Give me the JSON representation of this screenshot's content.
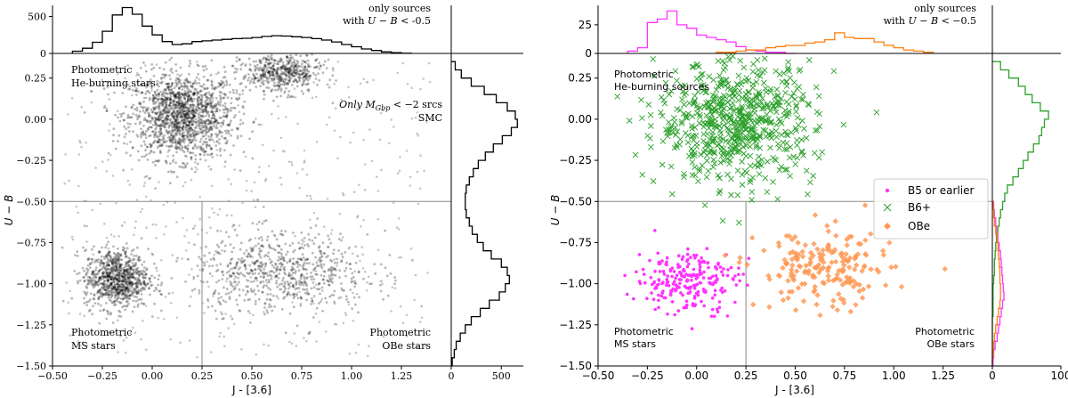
{
  "chart_data": [
    {
      "type": "scatter",
      "title": "",
      "xlabel": "J - [3.6]",
      "ylabel": "U − B",
      "xlim": [
        -0.5,
        1.5
      ],
      "ylim": [
        -1.5,
        0.4
      ],
      "xticks": [
        "−0.50",
        "−0.25",
        "0.00",
        "0.25",
        "0.50",
        "0.75",
        "1.00",
        "1.25"
      ],
      "xtick_values": [
        -0.5,
        -0.25,
        0.0,
        0.25,
        0.5,
        0.75,
        1.0,
        1.25
      ],
      "yticks": [
        "0.25",
        "0.00",
        "−0.25",
        "−0.50",
        "−0.75",
        "−1.00",
        "−1.25",
        "−1.50"
      ],
      "ytick_values": [
        0.25,
        0.0,
        -0.25,
        -0.5,
        -0.75,
        -1.0,
        -1.25,
        -1.5
      ],
      "reference_lines": {
        "vertical_x": 0.25,
        "horizontal_y": -0.5
      },
      "clusters": [
        {
          "name": "Photometric He-burning stars",
          "center": [
            0.15,
            0.02
          ],
          "spread": [
            0.13,
            0.13
          ],
          "count": 1500
        },
        {
          "name": "Photometric MS stars",
          "center": [
            -0.18,
            -0.97
          ],
          "spread": [
            0.08,
            0.09
          ],
          "count": 900
        },
        {
          "name": "Photometric OBe stars",
          "center": [
            0.65,
            -0.93
          ],
          "spread": [
            0.22,
            0.12
          ],
          "count": 700
        },
        {
          "name": "upper branch",
          "center": [
            0.65,
            0.28
          ],
          "spread": [
            0.1,
            0.06
          ],
          "count": 500
        }
      ],
      "annotations": {
        "top_left": [
          "Photometric",
          "He-burning stars"
        ],
        "bottom_left": [
          "Photometric",
          "MS stars"
        ],
        "bottom_right": [
          "Photometric",
          "OBe stars"
        ],
        "right_note_main": "Only M",
        "right_note_sub": "Gbp",
        "right_note_tail": " < −2 srcs",
        "right_note_line2": "SMC",
        "top_hist_note": [
          "only sources",
          "with ",
          "U − B",
          " < -0.5"
        ]
      },
      "top_hist": {
        "yticks": [
          "0",
          "500"
        ],
        "ytick_values": [
          0,
          500
        ],
        "ylim": [
          0,
          650
        ],
        "bin_edges": [
          -0.4,
          -0.35,
          -0.3,
          -0.25,
          -0.2,
          -0.15,
          -0.1,
          -0.05,
          0.0,
          0.05,
          0.1,
          0.15,
          0.2,
          0.25,
          0.3,
          0.35,
          0.4,
          0.45,
          0.5,
          0.55,
          0.6,
          0.65,
          0.7,
          0.75,
          0.8,
          0.85,
          0.9,
          0.95,
          1.0,
          1.05,
          1.1,
          1.15,
          1.2,
          1.25,
          1.3
        ],
        "counts": [
          30,
          70,
          150,
          300,
          520,
          620,
          530,
          370,
          250,
          160,
          120,
          130,
          160,
          170,
          180,
          190,
          200,
          205,
          215,
          230,
          240,
          235,
          225,
          215,
          200,
          180,
          155,
          120,
          90,
          60,
          40,
          20,
          10,
          3
        ]
      },
      "right_hist": {
        "xticks": [
          "0",
          "500"
        ],
        "xtick_values": [
          0,
          500
        ],
        "xlim": [
          0,
          720
        ],
        "bin_edges": [
          -1.5,
          -1.45,
          -1.4,
          -1.35,
          -1.3,
          -1.25,
          -1.2,
          -1.15,
          -1.1,
          -1.05,
          -1.0,
          -0.95,
          -0.9,
          -0.85,
          -0.8,
          -0.75,
          -0.7,
          -0.65,
          -0.6,
          -0.55,
          -0.5,
          -0.45,
          -0.4,
          -0.35,
          -0.3,
          -0.25,
          -0.2,
          -0.15,
          -0.1,
          -0.05,
          0.0,
          0.05,
          0.1,
          0.15,
          0.2,
          0.25,
          0.3,
          0.35
        ],
        "counts": [
          10,
          30,
          50,
          90,
          140,
          200,
          290,
          380,
          480,
          540,
          580,
          560,
          500,
          400,
          320,
          260,
          210,
          180,
          150,
          140,
          140,
          150,
          180,
          220,
          270,
          340,
          420,
          510,
          600,
          660,
          640,
          560,
          450,
          330,
          200,
          100,
          40
        ]
      }
    },
    {
      "type": "scatter",
      "title": "",
      "xlabel": "J - [3.6]",
      "ylabel": "U − B",
      "xlim": [
        -0.5,
        1.5
      ],
      "ylim": [
        -1.5,
        0.4
      ],
      "xticks": [
        "−0.50",
        "−0.25",
        "0.00",
        "0.25",
        "0.50",
        "0.75",
        "1.00",
        "1.25"
      ],
      "xtick_values": [
        -0.5,
        -0.25,
        0.0,
        0.25,
        0.5,
        0.75,
        1.0,
        1.25
      ],
      "yticks": [
        "0.25",
        "0.00",
        "−0.25",
        "−0.50",
        "−0.75",
        "−1.00",
        "−1.25",
        "−1.50"
      ],
      "ytick_values": [
        0.25,
        0.0,
        -0.25,
        -0.5,
        -0.75,
        -1.0,
        -1.25,
        -1.5
      ],
      "reference_lines": {
        "vertical_x": 0.25,
        "horizontal_y": -0.5
      },
      "series": [
        {
          "name": "B5 or earlier",
          "color": "#ff33ff",
          "marker": "dot",
          "center": [
            -0.05,
            -0.98
          ],
          "spread": [
            0.13,
            0.1
          ],
          "count": 230
        },
        {
          "name": "B6+",
          "color": "#2ca02c",
          "marker": "x",
          "center": [
            0.2,
            -0.02
          ],
          "spread": [
            0.2,
            0.18
          ],
          "count": 650
        },
        {
          "name": "OBe",
          "color": "#ff9955",
          "marker": "diamond",
          "center": [
            0.65,
            -0.92
          ],
          "spread": [
            0.17,
            0.12
          ],
          "count": 190
        }
      ],
      "legend": {
        "placement": "right",
        "entries": [
          "B5 or earlier",
          "B6+",
          "OBe"
        ]
      },
      "annotations": {
        "top_left": [
          "Photometric",
          "He-burning sources"
        ],
        "bottom_left": [
          "Photometric",
          "MS stars"
        ],
        "bottom_right": [
          "Photometric",
          "OBe stars"
        ],
        "top_hist_note": [
          "only sources",
          "with ",
          "U − B",
          " < −0.5"
        ]
      },
      "top_hist": {
        "yticks": [
          "0",
          "25"
        ],
        "ytick_values": [
          0,
          25
        ],
        "ylim": [
          0,
          42
        ],
        "series": [
          {
            "name": "B5 or earlier",
            "color": "#ff33ff",
            "bin_edges": [
              -0.35,
              -0.3,
              -0.25,
              -0.2,
              -0.15,
              -0.1,
              -0.05,
              0.0,
              0.05,
              0.1,
              0.15,
              0.2,
              0.25,
              0.3,
              0.35,
              0.4,
              0.45,
              0.5
            ],
            "counts": [
              2,
              5,
              27,
              30,
              37,
              25,
              22,
              16,
              14,
              12,
              10,
              6,
              3,
              2,
              1,
              1,
              0
            ]
          },
          {
            "name": "OBe",
            "color": "#ff7f0e",
            "bin_edges": [
              0.1,
              0.15,
              0.2,
              0.25,
              0.3,
              0.35,
              0.4,
              0.45,
              0.5,
              0.55,
              0.6,
              0.65,
              0.7,
              0.75,
              0.8,
              0.85,
              0.9,
              0.95,
              1.0,
              1.05,
              1.1,
              1.15,
              1.2
            ],
            "counts": [
              1,
              1,
              2,
              3,
              3,
              5,
              6,
              7,
              7,
              9,
              10,
              12,
              18,
              14,
              13,
              13,
              10,
              7,
              5,
              3,
              2,
              1
            ]
          }
        ]
      },
      "right_hist": {
        "xticks": [
          "0",
          "100"
        ],
        "xtick_values": [
          0,
          100
        ],
        "xlim": [
          0,
          100
        ],
        "series": [
          {
            "name": "B6+",
            "color": "#2ca02c",
            "bin_edges": [
              -1.5,
              -1.45,
              -1.4,
              -1.35,
              -1.3,
              -1.25,
              -1.2,
              -1.15,
              -1.1,
              -1.05,
              -1.0,
              -0.95,
              -0.9,
              -0.85,
              -0.8,
              -0.75,
              -0.7,
              -0.65,
              -0.6,
              -0.55,
              -0.5,
              -0.45,
              -0.4,
              -0.35,
              -0.3,
              -0.25,
              -0.2,
              -0.15,
              -0.1,
              -0.05,
              0.0,
              0.05,
              0.1,
              0.15,
              0.2,
              0.25,
              0.3,
              0.35
            ],
            "counts": [
              0,
              0,
              0,
              0,
              0,
              0,
              1,
              1,
              1,
              1,
              2,
              3,
              3,
              4,
              5,
              6,
              8,
              10,
              12,
              15,
              18,
              22,
              30,
              38,
              45,
              52,
              60,
              68,
              72,
              76,
              82,
              70,
              58,
              48,
              38,
              24,
              12
            ]
          },
          {
            "name": "B5 or earlier",
            "color": "#ff33ff",
            "bin_edges": [
              -1.5,
              -1.45,
              -1.4,
              -1.35,
              -1.3,
              -1.25,
              -1.2,
              -1.15,
              -1.1,
              -1.05,
              -1.0,
              -0.95,
              -0.9,
              -0.85,
              -0.8,
              -0.75,
              -0.7,
              -0.65,
              -0.6,
              -0.55,
              -0.5
            ],
            "counts": [
              1,
              2,
              4,
              7,
              9,
              11,
              13,
              15,
              17,
              16,
              15,
              14,
              13,
              12,
              10,
              8,
              6,
              5,
              3,
              2
            ]
          },
          {
            "name": "OBe",
            "color": "#ff7f0e",
            "bin_edges": [
              -1.5,
              -1.45,
              -1.4,
              -1.35,
              -1.3,
              -1.25,
              -1.2,
              -1.15,
              -1.1,
              -1.05,
              -1.0,
              -0.95,
              -0.9,
              -0.85,
              -0.8,
              -0.75,
              -0.7,
              -0.65,
              -0.6,
              -0.55,
              -0.5
            ],
            "counts": [
              0,
              1,
              2,
              3,
              5,
              7,
              9,
              11,
              12,
              12,
              11,
              11,
              10,
              9,
              8,
              7,
              5,
              3,
              2,
              1
            ]
          }
        ]
      }
    }
  ]
}
